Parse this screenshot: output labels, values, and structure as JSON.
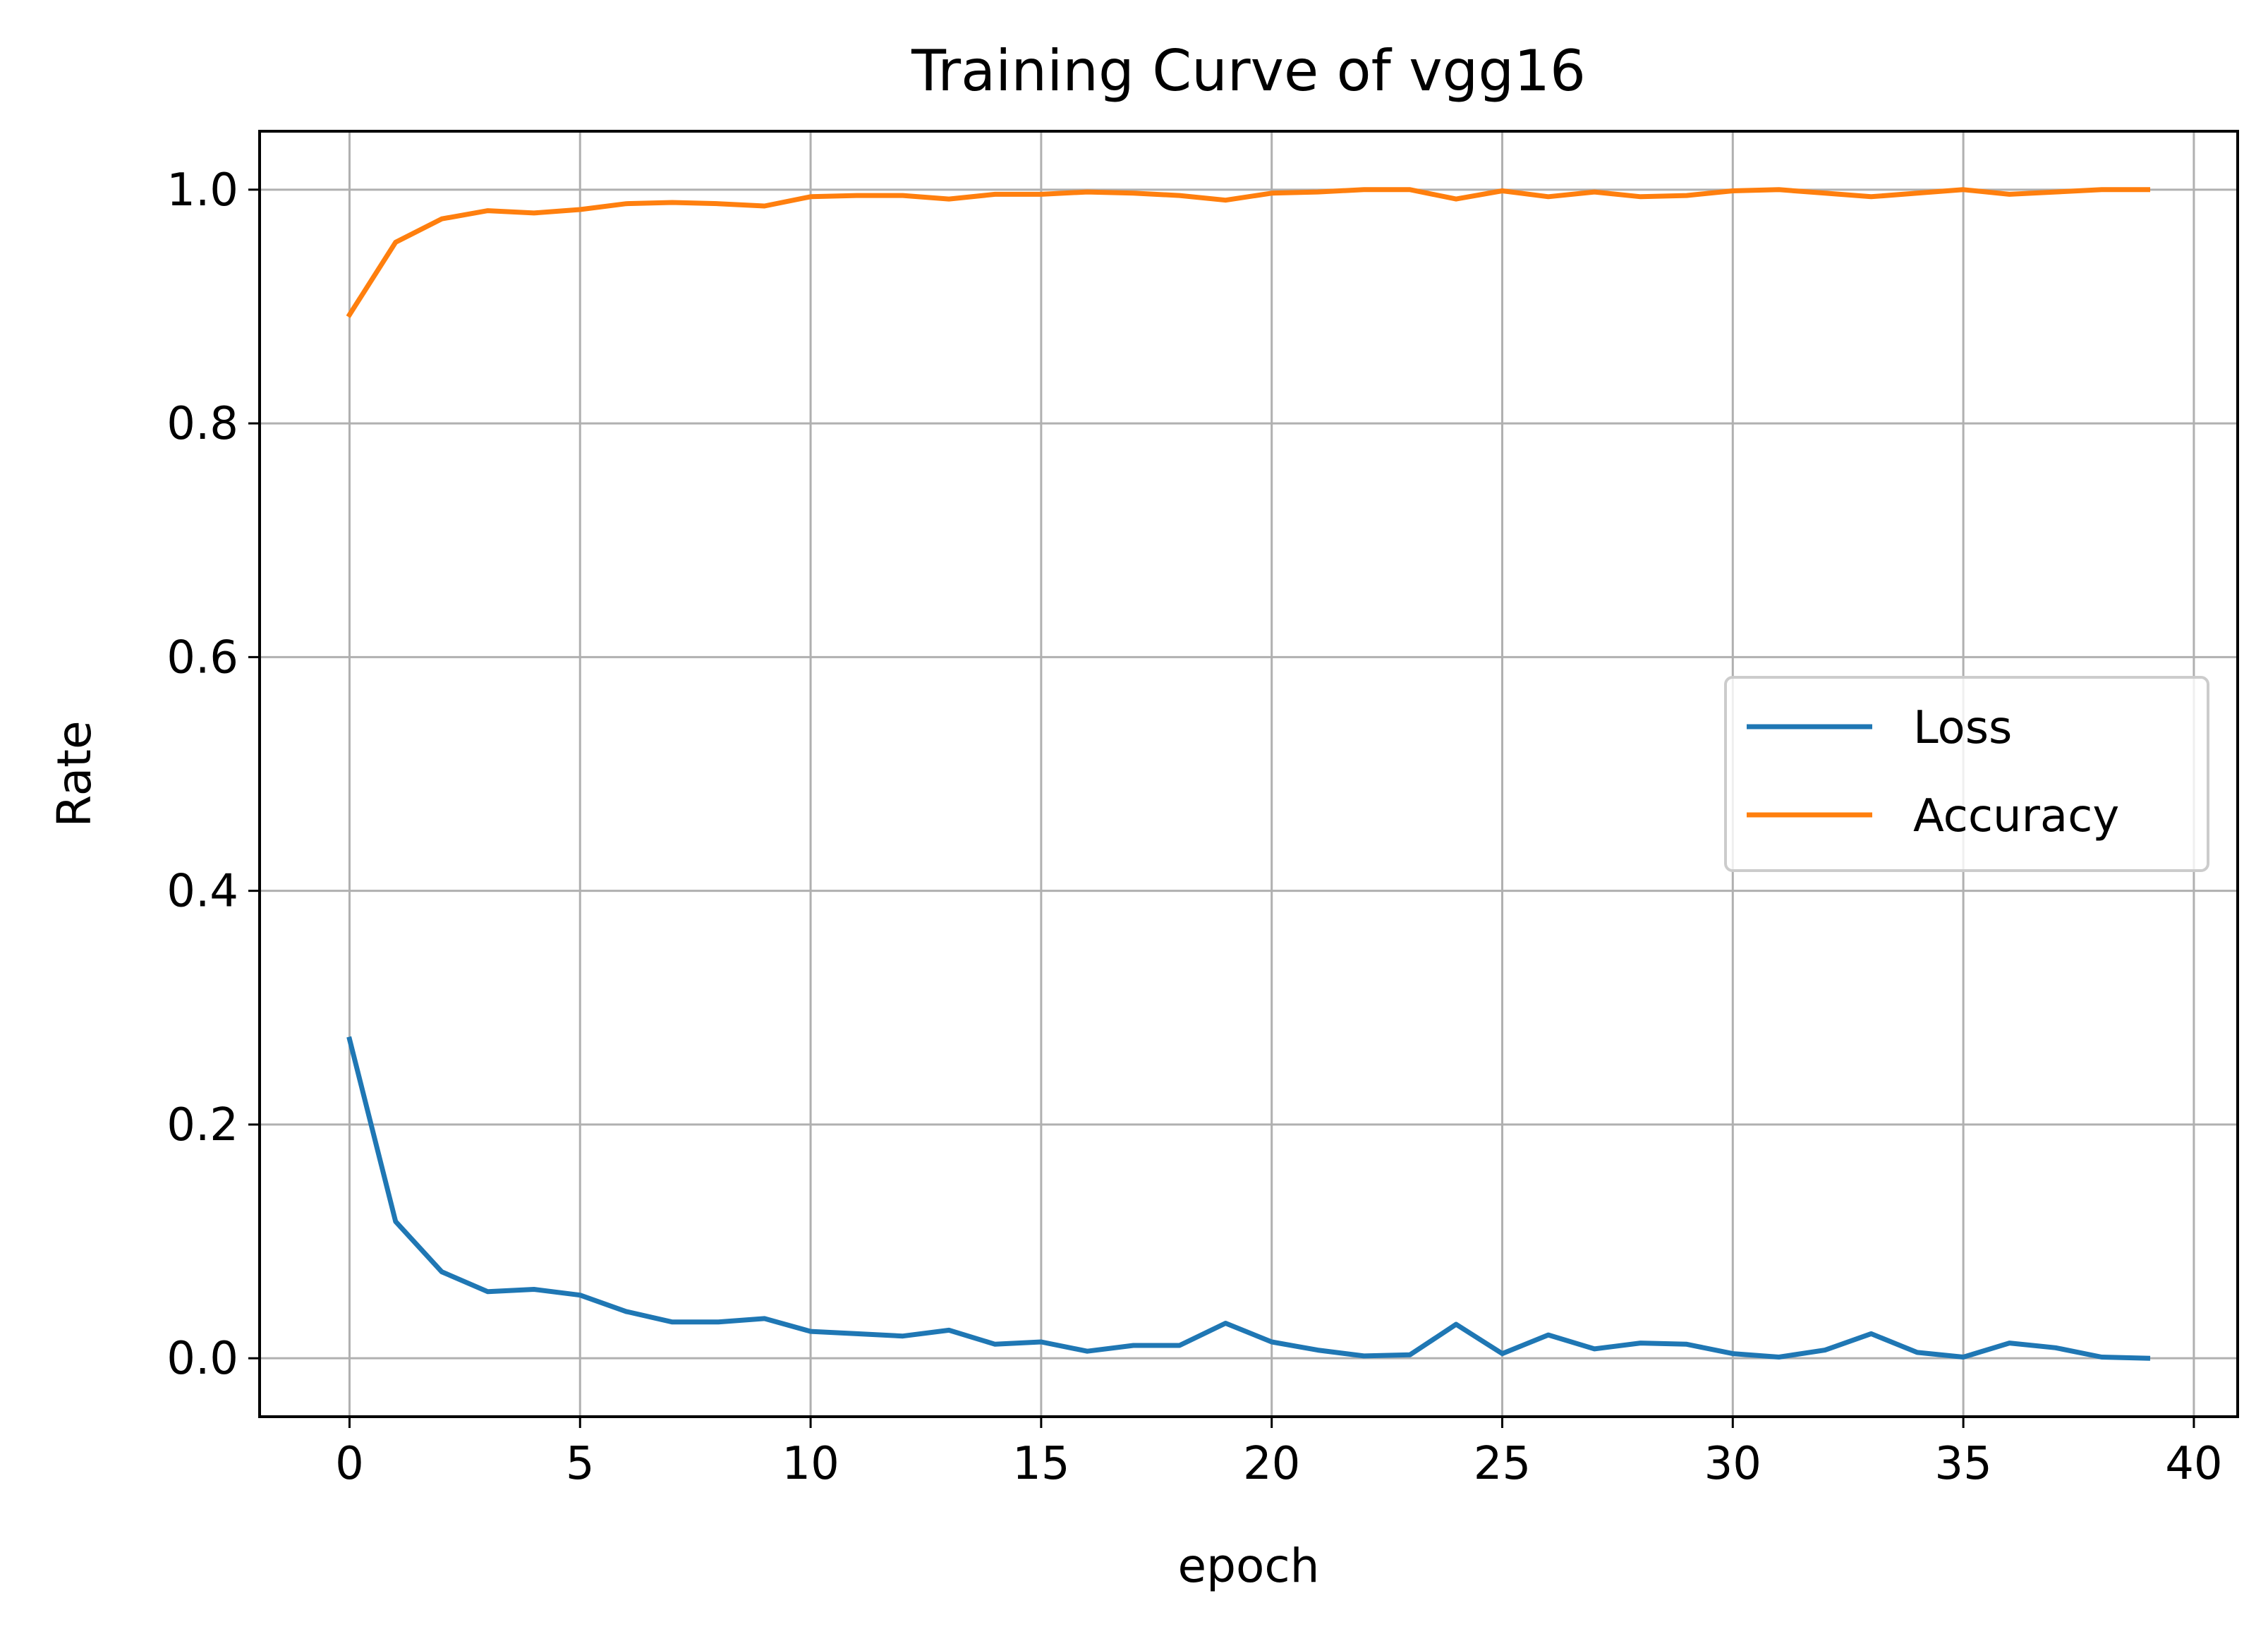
{
  "chart_data": {
    "type": "line",
    "title": "Training Curve of vgg16",
    "xlabel": "epoch",
    "ylabel": "Rate",
    "xlim": [
      -1.95,
      40.95
    ],
    "ylim": [
      -0.05,
      1.05
    ],
    "xticks": [
      0,
      5,
      10,
      15,
      20,
      25,
      30,
      35,
      40
    ],
    "xtick_labels": [
      "0",
      "5",
      "10",
      "15",
      "20",
      "25",
      "30",
      "35",
      "40"
    ],
    "yticks": [
      0.0,
      0.2,
      0.4,
      0.6,
      0.8,
      1.0
    ],
    "ytick_labels": [
      "0.0",
      "0.2",
      "0.4",
      "0.6",
      "0.8",
      "1.0"
    ],
    "grid": true,
    "legend_position": "center-right",
    "x": [
      0,
      1,
      2,
      3,
      4,
      5,
      6,
      7,
      8,
      9,
      10,
      11,
      12,
      13,
      14,
      15,
      16,
      17,
      18,
      19,
      20,
      21,
      22,
      23,
      24,
      25,
      26,
      27,
      28,
      29,
      30,
      31,
      32,
      33,
      34,
      35,
      36,
      37,
      38,
      39
    ],
    "series": [
      {
        "name": "Loss",
        "color": "#1f77b4",
        "values": [
          0.273,
          0.117,
          0.074,
          0.057,
          0.059,
          0.054,
          0.04,
          0.031,
          0.031,
          0.034,
          0.023,
          0.021,
          0.019,
          0.024,
          0.012,
          0.014,
          0.006,
          0.011,
          0.011,
          0.03,
          0.014,
          0.007,
          0.002,
          0.003,
          0.029,
          0.004,
          0.02,
          0.008,
          0.013,
          0.012,
          0.004,
          0.001,
          0.007,
          0.021,
          0.005,
          0.001,
          0.013,
          0.009,
          0.001,
          0.0
        ]
      },
      {
        "name": "Accuracy",
        "color": "#ff7f0e",
        "values": [
          0.893,
          0.955,
          0.975,
          0.982,
          0.98,
          0.983,
          0.988,
          0.989,
          0.988,
          0.986,
          0.994,
          0.995,
          0.995,
          0.992,
          0.996,
          0.996,
          0.998,
          0.997,
          0.995,
          0.991,
          0.997,
          0.998,
          1.0,
          1.0,
          0.992,
          0.999,
          0.994,
          0.998,
          0.994,
          0.995,
          0.999,
          1.0,
          0.997,
          0.994,
          0.997,
          1.0,
          0.996,
          0.998,
          1.0,
          1.0
        ]
      }
    ]
  }
}
